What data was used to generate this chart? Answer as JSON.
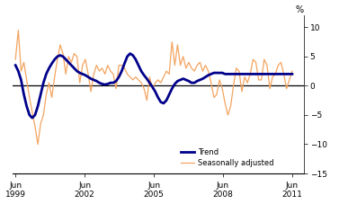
{
  "ylabel_right": "%",
  "ylim": [
    -15,
    12
  ],
  "yticks": [
    -15,
    -10,
    -5,
    0,
    5,
    10
  ],
  "background_color": "#ffffff",
  "trend_color": "#00008B",
  "seas_color": "#F4A460",
  "trend_linewidth": 2.0,
  "seas_linewidth": 0.9,
  "zero_line_color": "#000000",
  "legend_labels": [
    "Trend",
    "Seasonally adjusted"
  ],
  "x_tick_labels": [
    "Jun\n1999",
    "Jun\n2002",
    "Jun\n2005",
    "Jun\n2008",
    "Jun\n2011"
  ],
  "x_tick_positions": [
    0,
    12,
    24,
    36,
    48
  ],
  "xlim": [
    -0.5,
    50
  ],
  "trend_data": [
    3.5,
    2.5,
    1.0,
    -1.5,
    -3.5,
    -5.0,
    -5.5,
    -5.0,
    -3.5,
    -1.5,
    0.5,
    2.0,
    3.0,
    3.8,
    4.5,
    5.0,
    5.2,
    5.0,
    4.5,
    4.0,
    3.5,
    3.0,
    2.5,
    2.2,
    2.0,
    1.8,
    1.5,
    1.2,
    1.0,
    0.8,
    0.5,
    0.3,
    0.2,
    0.3,
    0.5,
    0.5,
    0.8,
    1.5,
    2.5,
    3.8,
    5.0,
    5.5,
    5.2,
    4.5,
    3.5,
    2.5,
    1.8,
    1.2,
    0.5,
    -0.2,
    -1.0,
    -2.0,
    -2.8,
    -3.0,
    -2.5,
    -1.5,
    -0.5,
    0.3,
    0.8,
    1.0,
    1.2,
    1.0,
    0.8,
    0.5,
    0.5,
    0.8,
    1.0,
    1.2,
    1.5,
    1.8,
    2.0,
    2.2,
    2.2,
    2.2,
    2.2,
    2.0,
    2.0,
    2.0,
    2.0,
    2.0,
    2.0,
    2.0,
    2.0,
    2.0,
    2.0,
    2.0,
    2.0,
    2.0,
    2.0,
    2.0,
    2.0,
    2.0,
    2.0,
    2.0,
    2.0,
    2.0,
    2.0,
    2.0,
    2.0,
    2.0
  ],
  "seas_data": [
    4.5,
    9.5,
    2.5,
    4.0,
    1.0,
    -2.0,
    -4.5,
    -7.0,
    -10.0,
    -6.5,
    -5.0,
    -1.5,
    0.5,
    -2.0,
    1.5,
    4.5,
    7.0,
    5.5,
    2.0,
    5.0,
    4.0,
    5.5,
    5.0,
    0.5,
    3.5,
    4.5,
    2.0,
    -1.0,
    2.0,
    3.5,
    2.5,
    3.0,
    2.0,
    3.5,
    2.5,
    2.0,
    -0.5,
    3.5,
    3.5,
    3.0,
    2.0,
    1.5,
    1.0,
    1.5,
    1.0,
    0.5,
    -0.5,
    -2.5,
    1.5,
    -0.5,
    0.5,
    1.0,
    0.5,
    1.5,
    2.5,
    2.0,
    7.5,
    3.5,
    7.0,
    3.5,
    5.0,
    3.0,
    4.0,
    3.0,
    2.5,
    3.5,
    4.0,
    2.5,
    3.5,
    2.5,
    0.5,
    -2.0,
    -1.5,
    1.0,
    -0.5,
    -3.0,
    -5.0,
    -3.5,
    0.0,
    3.0,
    2.5,
    -1.0,
    1.5,
    0.5,
    2.0,
    4.5,
    4.0,
    1.0,
    1.0,
    4.5,
    3.5,
    -0.5,
    1.5,
    2.0,
    3.5,
    4.0,
    2.0,
    -0.5,
    1.0,
    2.5
  ]
}
